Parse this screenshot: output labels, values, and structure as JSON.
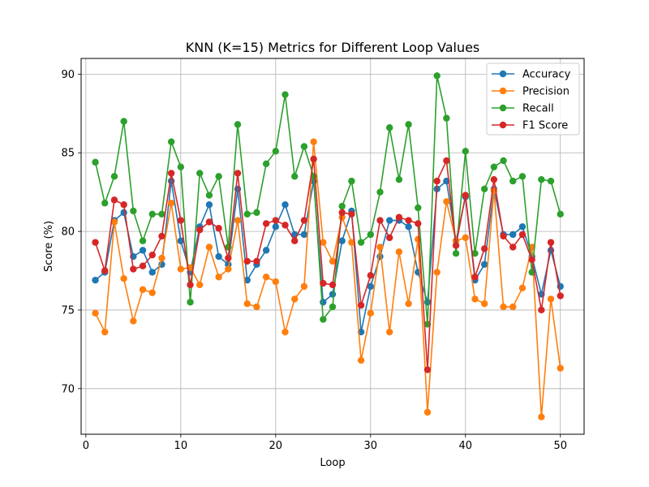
{
  "chart_data": {
    "type": "line",
    "title": "KNN (K=15) Metrics for Different Loop Values",
    "xlabel": "Loop",
    "ylabel": "Score (%)",
    "xlim": [
      -0.5,
      52.5
    ],
    "ylim": [
      67.1,
      91.0
    ],
    "xticks": [
      0,
      10,
      20,
      30,
      40,
      50
    ],
    "yticks": [
      70,
      75,
      80,
      85,
      90
    ],
    "grid": true,
    "legend_position": "top-right",
    "x": [
      1,
      2,
      3,
      4,
      5,
      6,
      7,
      8,
      9,
      10,
      11,
      12,
      13,
      14,
      15,
      16,
      17,
      18,
      19,
      20,
      21,
      22,
      23,
      24,
      25,
      26,
      27,
      28,
      29,
      30,
      31,
      32,
      33,
      34,
      35,
      36,
      37,
      38,
      39,
      40,
      41,
      42,
      43,
      44,
      45,
      46,
      47,
      48,
      49,
      50
    ],
    "series": [
      {
        "name": "Accuracy",
        "color": "#1f77b4",
        "values": [
          76.9,
          77.4,
          80.7,
          81.2,
          78.4,
          78.8,
          77.4,
          77.9,
          83.2,
          79.4,
          77.4,
          80.3,
          81.7,
          78.4,
          77.9,
          82.7,
          76.9,
          77.9,
          78.8,
          80.3,
          81.7,
          79.8,
          79.8,
          83.2,
          75.5,
          76.0,
          79.4,
          81.3,
          73.6,
          76.5,
          78.4,
          80.7,
          80.7,
          80.3,
          77.4,
          75.5,
          82.7,
          83.2,
          79.4,
          82.2,
          76.9,
          77.9,
          82.7,
          79.8,
          79.8,
          80.3,
          78.4,
          76.0,
          78.8,
          76.5
        ]
      },
      {
        "name": "Precision",
        "color": "#ff7f0e",
        "values": [
          74.8,
          73.6,
          80.6,
          77.0,
          74.3,
          76.3,
          76.1,
          78.3,
          81.8,
          77.6,
          77.7,
          76.6,
          79.0,
          77.1,
          77.6,
          80.7,
          75.4,
          75.2,
          77.1,
          76.8,
          73.6,
          75.7,
          76.5,
          85.7,
          79.3,
          78.1,
          80.9,
          79.3,
          71.8,
          74.8,
          79.0,
          73.6,
          78.7,
          75.4,
          79.5,
          68.5,
          77.4,
          81.9,
          79.4,
          79.6,
          75.7,
          75.4,
          82.6,
          75.2,
          75.2,
          76.4,
          79.0,
          68.2,
          75.7,
          71.3
        ]
      },
      {
        "name": "Recall",
        "color": "#2ca02c",
        "values": [
          84.4,
          81.8,
          83.5,
          87.0,
          81.3,
          79.4,
          81.1,
          81.1,
          85.7,
          84.1,
          75.5,
          83.7,
          82.3,
          83.5,
          79.0,
          86.8,
          81.1,
          81.2,
          84.3,
          85.1,
          88.7,
          83.5,
          85.4,
          83.5,
          74.4,
          75.2,
          81.6,
          83.2,
          79.3,
          79.8,
          82.5,
          86.6,
          83.3,
          86.8,
          81.5,
          74.1,
          89.9,
          87.2,
          78.6,
          85.1,
          78.6,
          82.7,
          84.1,
          84.5,
          83.2,
          83.5,
          77.4,
          83.3,
          83.2,
          81.1
        ]
      },
      {
        "name": "F1 Score",
        "color": "#d62728",
        "values": [
          79.3,
          77.5,
          82.0,
          81.7,
          77.6,
          77.8,
          78.5,
          79.7,
          83.7,
          80.7,
          76.6,
          80.1,
          80.6,
          80.2,
          78.3,
          83.7,
          78.1,
          78.1,
          80.5,
          80.7,
          80.4,
          79.4,
          80.7,
          84.6,
          76.7,
          76.6,
          81.2,
          81.1,
          75.3,
          77.2,
          80.7,
          79.6,
          80.9,
          80.7,
          80.5,
          71.2,
          83.2,
          84.5,
          79.1,
          82.3,
          77.1,
          78.9,
          83.3,
          79.7,
          79.0,
          79.8,
          78.2,
          75.0,
          79.3,
          75.9
        ]
      }
    ]
  }
}
